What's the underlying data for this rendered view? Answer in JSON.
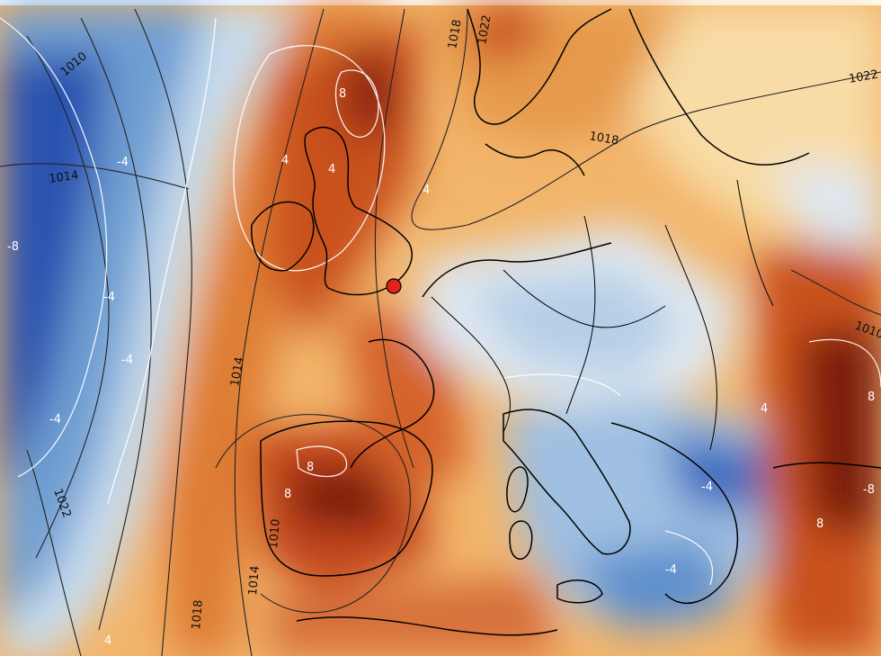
{
  "map": {
    "colors": {
      "deep_blue": "#1f3f9e",
      "mid_blue": "#4f86c6",
      "light_blue": "#bfd7ec",
      "white": "#f3f1ee",
      "light_orange": "#f7d39a",
      "orange": "#e58a3a",
      "red_orange": "#c4471f",
      "dark_red": "#6a140e",
      "coastline": "#000000",
      "isobar": "#222222",
      "anomaly_contour": "#ffffff",
      "marker": "#e2231a"
    },
    "isobar_labels": [
      "1010",
      "1014",
      "1018",
      "1022",
      "1014",
      "1018",
      "1022",
      "1018",
      "1014",
      "1010",
      "1010",
      "1022"
    ],
    "anomaly_labels": [
      "-8",
      "-4",
      "-4",
      "-4",
      "-4",
      "4",
      "4",
      "4",
      "8",
      "8",
      "8",
      "8",
      "-4",
      "-4",
      "4",
      "-8",
      "8",
      "4"
    ],
    "marker": {
      "name": "location-marker"
    }
  }
}
